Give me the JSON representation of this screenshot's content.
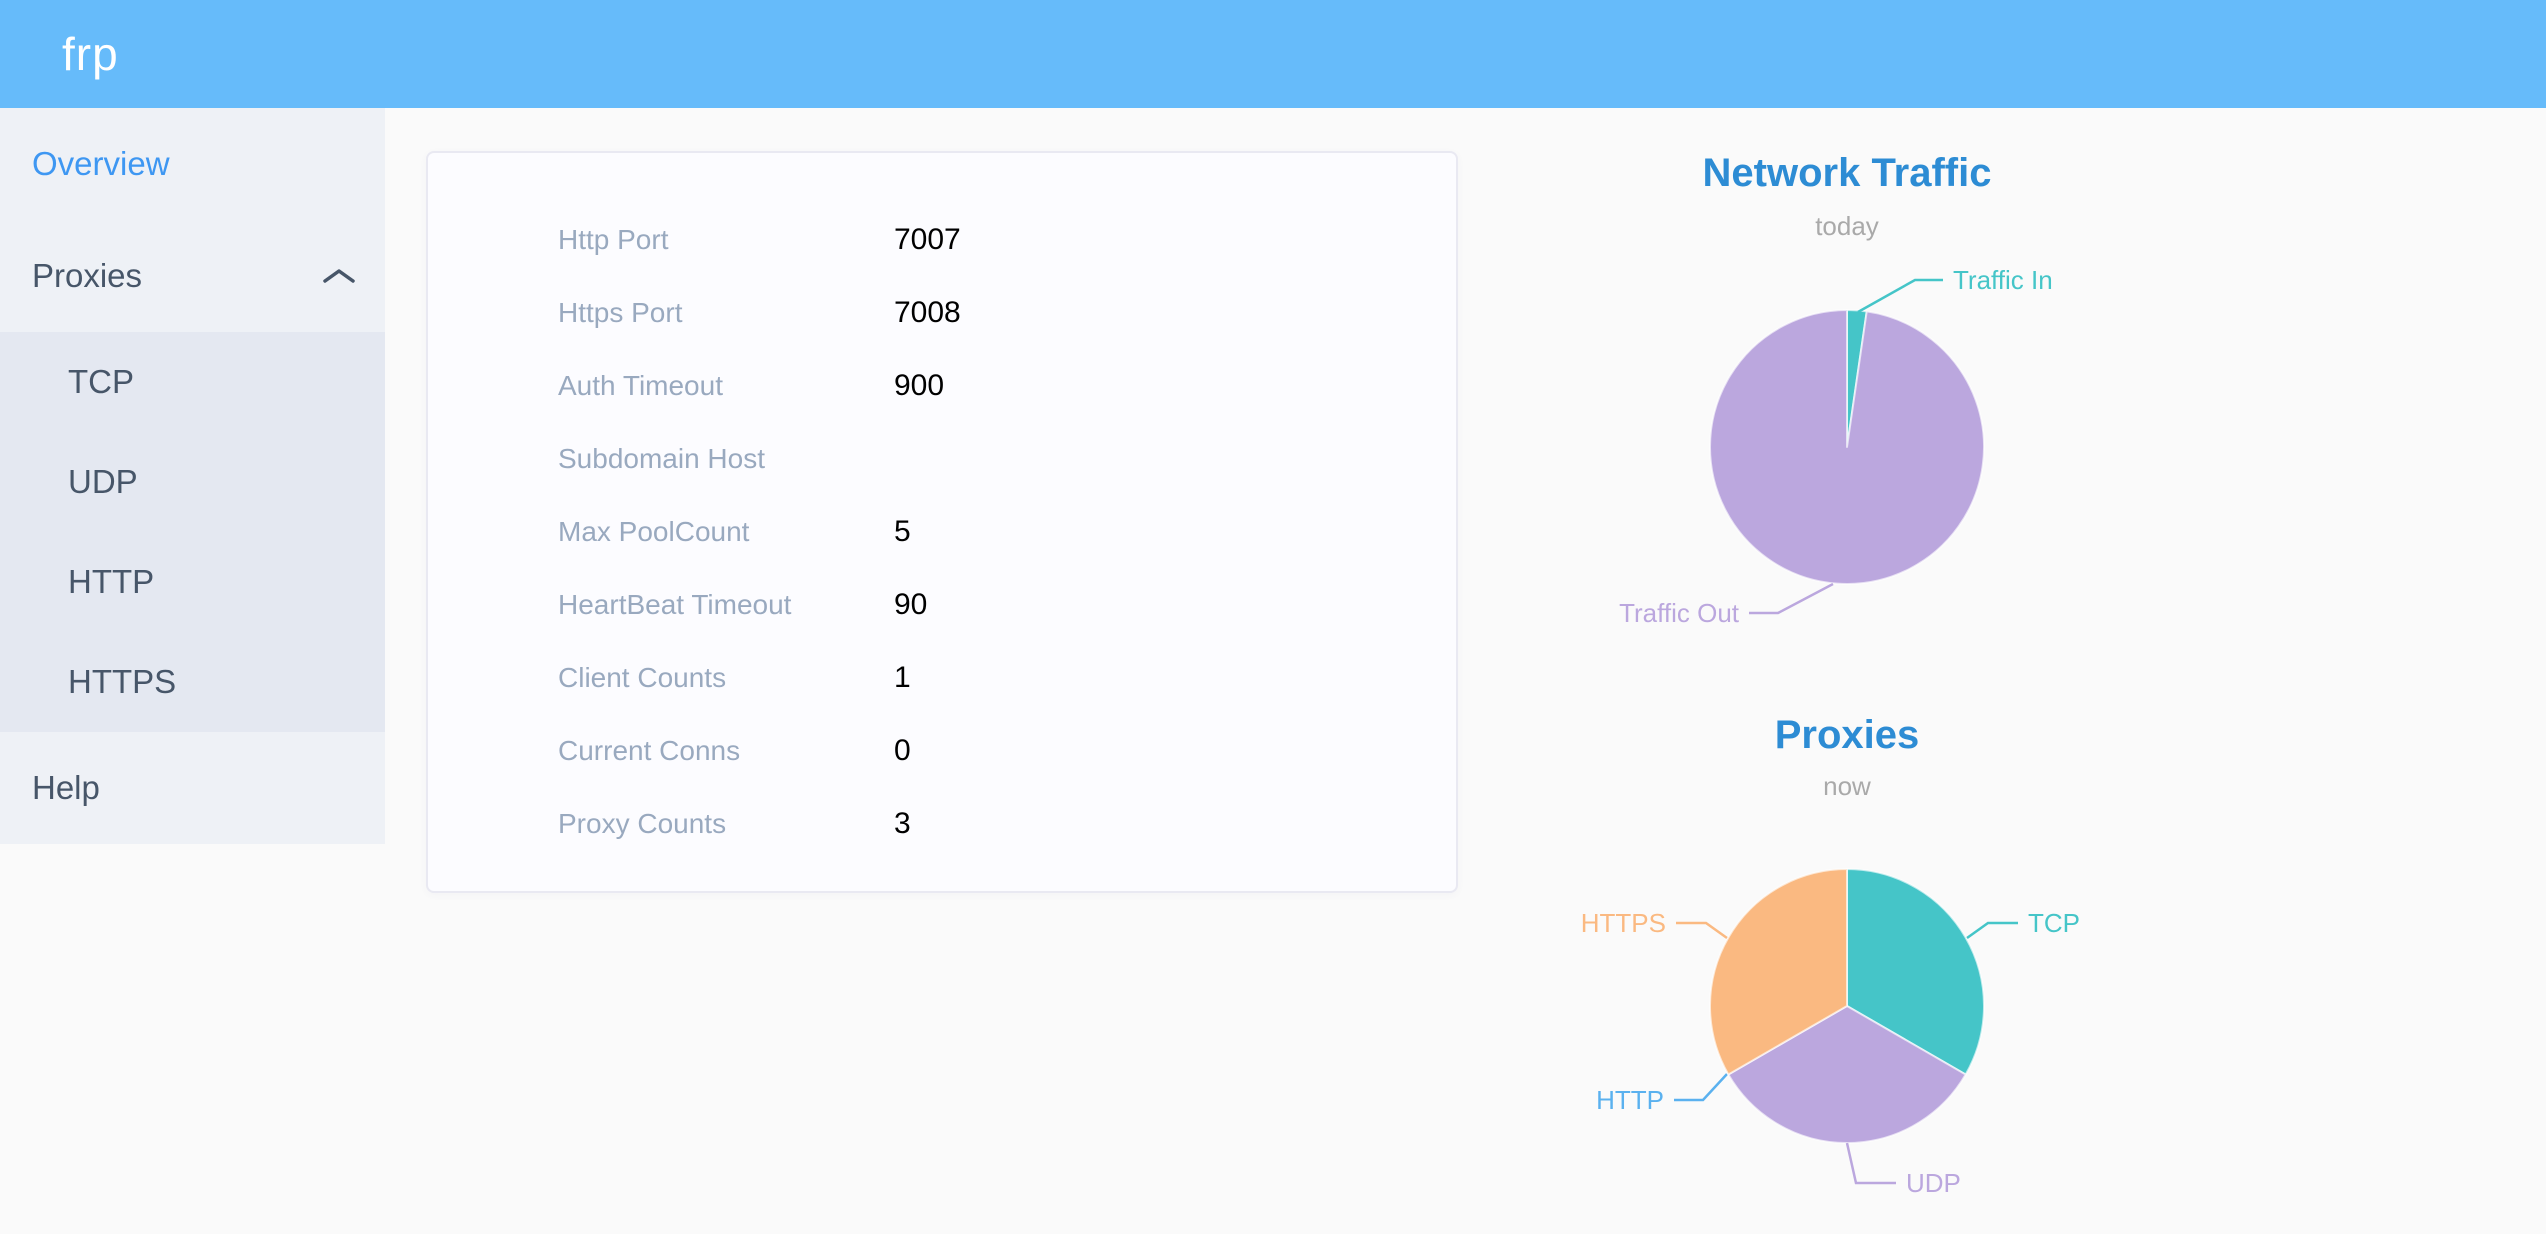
{
  "header": {
    "logo_text": "frp"
  },
  "sidebar": {
    "items": [
      {
        "label": "Overview",
        "active": true
      },
      {
        "label": "Proxies",
        "expanded": true
      },
      {
        "label": "TCP"
      },
      {
        "label": "UDP"
      },
      {
        "label": "HTTP"
      },
      {
        "label": "HTTPS"
      },
      {
        "label": "Help"
      }
    ]
  },
  "server_info": {
    "rows": [
      {
        "label": "Http Port",
        "value": "7007"
      },
      {
        "label": "Https Port",
        "value": "7008"
      },
      {
        "label": "Auth Timeout",
        "value": "900"
      },
      {
        "label": "Subdomain Host",
        "value": ""
      },
      {
        "label": "Max PoolCount",
        "value": "5"
      },
      {
        "label": "HeartBeat Timeout",
        "value": "90"
      },
      {
        "label": "Client Counts",
        "value": "1"
      },
      {
        "label": "Current Conns",
        "value": "0"
      },
      {
        "label": "Proxy Counts",
        "value": "3"
      }
    ]
  },
  "chart_data": [
    {
      "type": "pie",
      "title": "Network Traffic",
      "subtitle": "today",
      "unit": "percent-share (estimated from slice angles)",
      "slices": [
        {
          "label": "Traffic In",
          "value": 2.3,
          "color": "#45c5c8"
        },
        {
          "label": "Traffic Out",
          "value": 97.7,
          "color": "#bba7de"
        }
      ],
      "legend_position": "callout-labels"
    },
    {
      "type": "pie",
      "title": "Proxies",
      "subtitle": "now",
      "unit": "proxy count",
      "slices": [
        {
          "label": "TCP",
          "value": 1,
          "color": "#45c5c8"
        },
        {
          "label": "UDP",
          "value": 1,
          "color": "#bba7de"
        },
        {
          "label": "HTTP",
          "value": 0,
          "color": "#5ab1ef"
        },
        {
          "label": "HTTPS",
          "value": 1,
          "color": "#fab981"
        }
      ],
      "legend_position": "callout-labels"
    }
  ],
  "colors": {
    "header_bg": "#66bbfa",
    "sidebar_bg": "#eef1f6",
    "submenu_bg": "#e4e8f1",
    "sidebar_text": "#475669",
    "sidebar_active": "#3e97f2",
    "card_label": "#99a9bf",
    "chart_title": "#2d8cd4",
    "chart_subtitle": "#a9a9a9"
  }
}
